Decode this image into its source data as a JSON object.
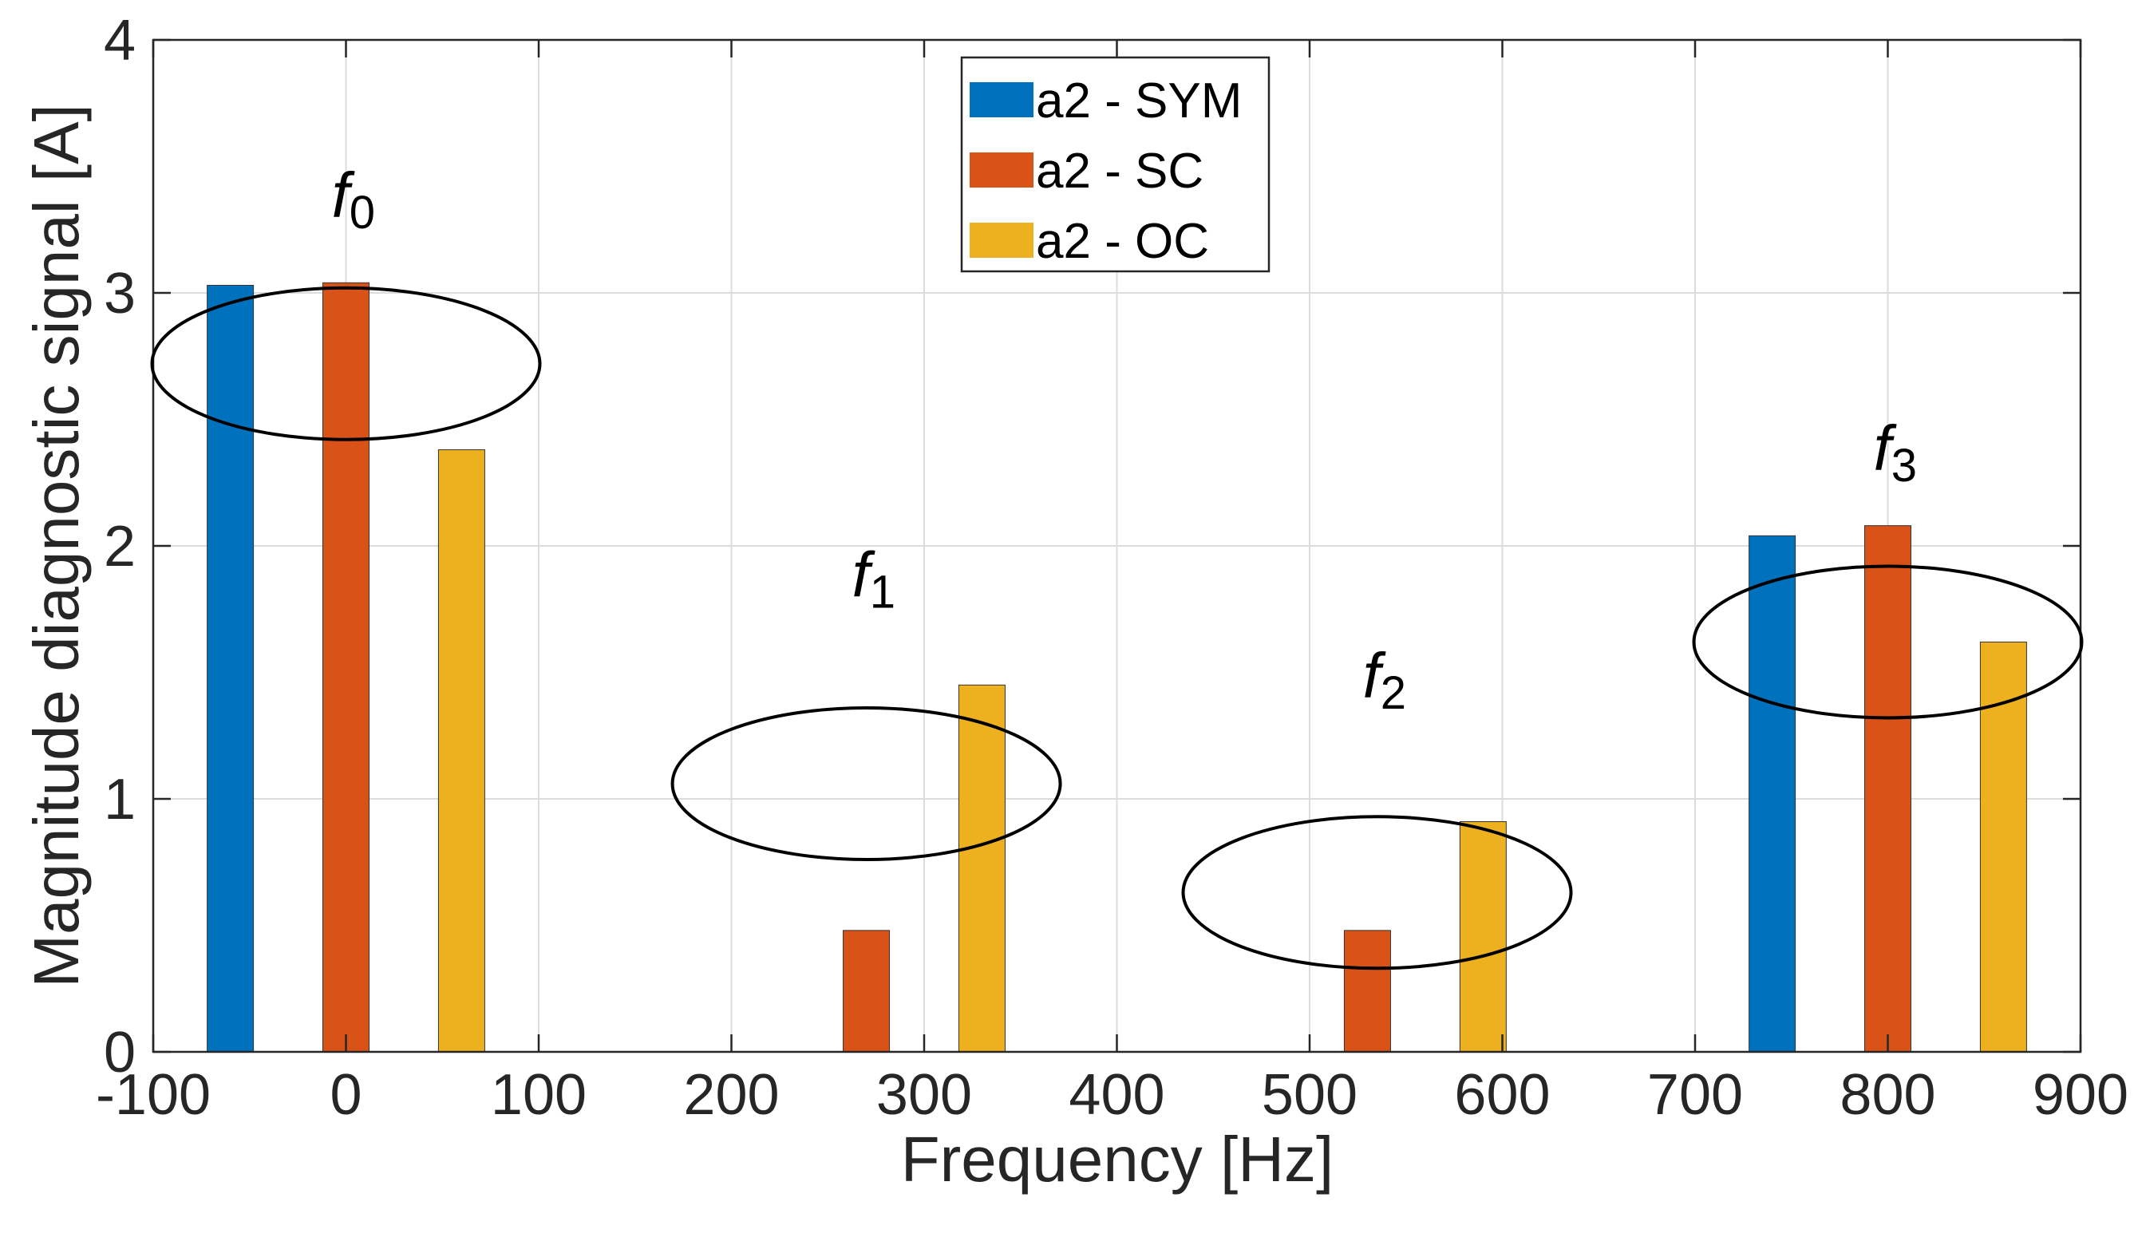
{
  "colors": {
    "sym": "#0072BD",
    "sc": "#D95319",
    "oc": "#EDB120",
    "grid": "#dcdcdc",
    "axis": "#262626"
  },
  "chart_data": {
    "type": "bar",
    "title": "",
    "xlabel": "Frequency  [Hz]",
    "ylabel": "Magnitude diagnostic signal [A]",
    "xlim": [
      -100,
      900
    ],
    "ylim": [
      0,
      4
    ],
    "xticks": [
      -100,
      0,
      100,
      200,
      300,
      400,
      500,
      600,
      700,
      800,
      900
    ],
    "yticks": [
      0,
      1,
      2,
      3,
      4
    ],
    "grid": true,
    "legend_position": "top-center",
    "series": [
      {
        "name": "a2 - SYM",
        "color": "#0072BD",
        "x": [
          -60,
          270,
          530,
          740
        ],
        "values": [
          3.03,
          0,
          0,
          2.04
        ]
      },
      {
        "name": "a2 - SC",
        "color": "#D95319",
        "x": [
          0,
          270,
          530,
          800
        ],
        "values": [
          3.04,
          0.48,
          0.48,
          2.08
        ]
      },
      {
        "name": "a2 - OC",
        "color": "#EDB120",
        "x": [
          60,
          330,
          590,
          860
        ],
        "values": [
          2.38,
          1.45,
          0.91,
          1.62
        ]
      }
    ],
    "annotations": [
      {
        "label": "f",
        "sub": "0",
        "center_x": 0,
        "center_y": 2.72,
        "text_x": 0,
        "text_y": 3.3
      },
      {
        "label": "f",
        "sub": "1",
        "center_x": 270,
        "center_y": 1.06,
        "text_x": 270,
        "text_y": 1.8
      },
      {
        "label": "f",
        "sub": "2",
        "center_x": 535,
        "center_y": 0.63,
        "text_x": 535,
        "text_y": 1.4
      },
      {
        "label": "f",
        "sub": "3",
        "center_x": 800,
        "center_y": 1.62,
        "text_x": 800,
        "text_y": 2.3
      }
    ]
  }
}
